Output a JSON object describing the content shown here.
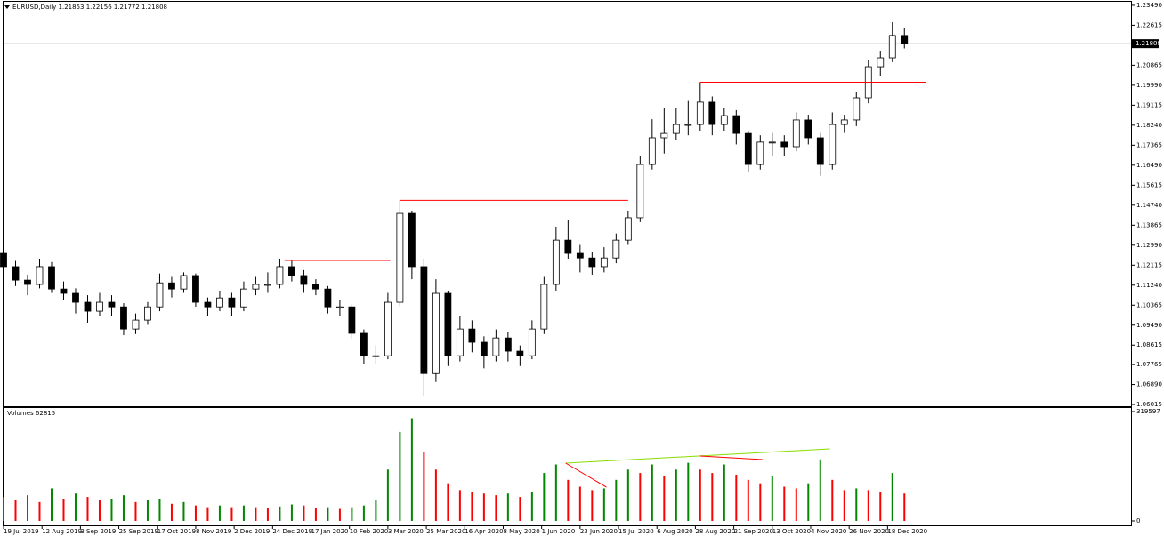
{
  "chart_data": {
    "type": "candlestick",
    "title": "EURUSD,Daily  1.21853 1.22156 1.21772 1.21808",
    "x": [
      0,
      5,
      10,
      15,
      20,
      25,
      30,
      35,
      40,
      45,
      50,
      55,
      60,
      65,
      70,
      75,
      80,
      85,
      90,
      95,
      100,
      105,
      110,
      115,
      120,
      125,
      130,
      135,
      140,
      145,
      150,
      155,
      160,
      165,
      170,
      175,
      180,
      185,
      190,
      195,
      200,
      205,
      210,
      215,
      220,
      225,
      230,
      235,
      240,
      245,
      250,
      255,
      260,
      265,
      270,
      275,
      280,
      285,
      290,
      295,
      300,
      305,
      310,
      315,
      320,
      325,
      330,
      335,
      340,
      345,
      350,
      355,
      360,
      365,
      370,
      375
    ],
    "xlim": [
      0,
      469
    ],
    "xticks": [
      {
        "value": 0,
        "label": "19 Jul 2019"
      },
      {
        "value": 16,
        "label": "12 Aug 2019"
      },
      {
        "value": 32,
        "label": "3 Sep 2019"
      },
      {
        "value": 48,
        "label": "25 Sep 2019"
      },
      {
        "value": 64,
        "label": "17 Oct 2019"
      },
      {
        "value": 80,
        "label": "8 Nov 2019"
      },
      {
        "value": 96,
        "label": "2 Dec 2019"
      },
      {
        "value": 112,
        "label": "24 Dec 2019"
      },
      {
        "value": 128,
        "label": "17 Jan 2020"
      },
      {
        "value": 144,
        "label": "10 Feb 2020"
      },
      {
        "value": 160,
        "label": "3 Mar 2020"
      },
      {
        "value": 176,
        "label": "25 Mar 2020"
      },
      {
        "value": 192,
        "label": "16 Apr 2020"
      },
      {
        "value": 208,
        "label": "8 May 2020"
      },
      {
        "value": 224,
        "label": "1 Jun 2020"
      },
      {
        "value": 240,
        "label": "23 Jun 2020"
      },
      {
        "value": 256,
        "label": "15 Jul 2020"
      },
      {
        "value": 272,
        "label": "6 Aug 2020"
      },
      {
        "value": 288,
        "label": "28 Aug 2020"
      },
      {
        "value": 304,
        "label": "21 Sep 2020"
      },
      {
        "value": 320,
        "label": "13 Oct 2020"
      },
      {
        "value": 336,
        "label": "4 Nov 2020"
      },
      {
        "value": 352,
        "label": "26 Nov 2020"
      },
      {
        "value": 368,
        "label": "18 Dec 2020"
      }
    ],
    "candles": [
      [
        1.1263,
        1.129,
        1.118,
        1.1205
      ],
      [
        1.1205,
        1.123,
        1.112,
        1.1146
      ],
      [
        1.1146,
        1.117,
        1.108,
        1.1127
      ],
      [
        1.1127,
        1.124,
        1.111,
        1.1205
      ],
      [
        1.1205,
        1.1225,
        1.109,
        1.1107
      ],
      [
        1.1107,
        1.114,
        1.106,
        1.1088
      ],
      [
        1.1088,
        1.111,
        1.1,
        1.1049
      ],
      [
        1.1049,
        1.108,
        1.096,
        1.101
      ],
      [
        1.101,
        1.109,
        1.099,
        1.1049
      ],
      [
        1.1049,
        1.108,
        1.099,
        1.1029
      ],
      [
        1.1029,
        1.1045,
        1.0905,
        1.0932
      ],
      [
        1.0932,
        1.1,
        1.091,
        1.0971
      ],
      [
        1.0971,
        1.105,
        1.095,
        1.1029
      ],
      [
        1.1029,
        1.1175,
        1.101,
        1.1134
      ],
      [
        1.1134,
        1.116,
        1.107,
        1.1107
      ],
      [
        1.1107,
        1.118,
        1.109,
        1.1166
      ],
      [
        1.1166,
        1.1175,
        1.103,
        1.1049
      ],
      [
        1.1049,
        1.107,
        1.099,
        1.1029
      ],
      [
        1.1029,
        1.11,
        1.101,
        1.1068
      ],
      [
        1.1068,
        1.109,
        1.099,
        1.1029
      ],
      [
        1.1029,
        1.114,
        1.101,
        1.1107
      ],
      [
        1.1107,
        1.116,
        1.108,
        1.1127
      ],
      [
        1.1127,
        1.118,
        1.109,
        1.1127
      ],
      [
        1.1127,
        1.124,
        1.111,
        1.1205
      ],
      [
        1.1205,
        1.123,
        1.114,
        1.1166
      ],
      [
        1.1166,
        1.119,
        1.109,
        1.1127
      ],
      [
        1.1127,
        1.115,
        1.108,
        1.1107
      ],
      [
        1.1107,
        1.112,
        1.1,
        1.1029
      ],
      [
        1.1029,
        1.106,
        1.099,
        1.1029
      ],
      [
        1.1029,
        1.104,
        1.089,
        1.0913
      ],
      [
        1.0913,
        1.093,
        1.078,
        1.0815
      ],
      [
        1.0815,
        1.086,
        1.078,
        1.0815
      ],
      [
        1.0815,
        1.109,
        1.08,
        1.1049
      ],
      [
        1.1049,
        1.1496,
        1.103,
        1.1438
      ],
      [
        1.1438,
        1.145,
        1.115,
        1.1205
      ],
      [
        1.1205,
        1.124,
        1.0636,
        1.0737
      ],
      [
        1.0737,
        1.115,
        1.07,
        1.1088
      ],
      [
        1.1088,
        1.11,
        1.077,
        1.0815
      ],
      [
        1.0815,
        1.099,
        1.079,
        1.0932
      ],
      [
        1.0932,
        1.097,
        1.083,
        1.0874
      ],
      [
        1.0874,
        1.09,
        1.076,
        1.0815
      ],
      [
        1.0815,
        1.093,
        1.079,
        1.0893
      ],
      [
        1.0893,
        1.092,
        1.079,
        1.0835
      ],
      [
        1.0835,
        1.086,
        1.077,
        1.0815
      ],
      [
        1.0815,
        1.097,
        1.08,
        1.0932
      ],
      [
        1.0932,
        1.116,
        1.091,
        1.1127
      ],
      [
        1.1127,
        1.138,
        1.11,
        1.1321
      ],
      [
        1.1321,
        1.141,
        1.124,
        1.1263
      ],
      [
        1.1263,
        1.13,
        1.118,
        1.1243
      ],
      [
        1.1243,
        1.127,
        1.117,
        1.1205
      ],
      [
        1.1205,
        1.129,
        1.118,
        1.1243
      ],
      [
        1.1243,
        1.135,
        1.122,
        1.1321
      ],
      [
        1.1321,
        1.145,
        1.13,
        1.1419
      ],
      [
        1.1419,
        1.169,
        1.14,
        1.1652
      ],
      [
        1.1652,
        1.185,
        1.163,
        1.1769
      ],
      [
        1.1769,
        1.19,
        1.17,
        1.1788
      ],
      [
        1.1788,
        1.19,
        1.176,
        1.1827
      ],
      [
        1.1827,
        1.193,
        1.178,
        1.1827
      ],
      [
        1.1827,
        1.2012,
        1.18,
        1.1925
      ],
      [
        1.1925,
        1.195,
        1.178,
        1.1827
      ],
      [
        1.1827,
        1.19,
        1.18,
        1.1866
      ],
      [
        1.1866,
        1.189,
        1.174,
        1.1788
      ],
      [
        1.1788,
        1.18,
        1.162,
        1.1652
      ],
      [
        1.1652,
        1.178,
        1.163,
        1.175
      ],
      [
        1.175,
        1.179,
        1.169,
        1.175
      ],
      [
        1.175,
        1.178,
        1.169,
        1.173
      ],
      [
        1.173,
        1.188,
        1.171,
        1.1847
      ],
      [
        1.1847,
        1.187,
        1.174,
        1.1769
      ],
      [
        1.1769,
        1.179,
        1.1603,
        1.1652
      ],
      [
        1.1652,
        1.188,
        1.163,
        1.1827
      ],
      [
        1.1827,
        1.187,
        1.179,
        1.1847
      ],
      [
        1.1847,
        1.197,
        1.182,
        1.1944
      ],
      [
        1.1944,
        1.211,
        1.192,
        1.208
      ],
      [
        1.208,
        1.215,
        1.204,
        1.2119
      ],
      [
        1.2119,
        1.2275,
        1.21,
        1.2217
      ],
      [
        1.2217,
        1.225,
        1.216,
        1.2181
      ]
    ],
    "ylim": [
      1.0594,
      1.2372
    ],
    "yticks": [
      {
        "value": 1.2349,
        "label": "1.23490"
      },
      1.22615,
      1.20865,
      {
        "value": 1.1999,
        "label": "1.19990"
      },
      1.19115,
      {
        "value": 1.1824,
        "label": "1.18240"
      },
      1.17365,
      {
        "value": 1.1649,
        "label": "1.16490"
      },
      1.15615,
      {
        "value": 1.1474,
        "label": "1.14740"
      },
      1.13865,
      {
        "value": 1.1299,
        "label": "1.12990"
      },
      1.12115,
      {
        "value": 1.1124,
        "label": "1.11240"
      },
      1.10365,
      {
        "value": 1.0949,
        "label": "1.09490"
      },
      1.08615,
      1.07765,
      {
        "value": 1.0689,
        "label": "1.06890"
      },
      1.06015
    ],
    "bid": 1.21808,
    "up_color": "#ffffff",
    "down_color": "#000000",
    "level_color": "#ff0000",
    "levels": [
      {
        "price": 1.1232,
        "from": 117,
        "to": 161
      },
      {
        "price": 1.1495,
        "from": 165,
        "to": 260
      },
      {
        "price": 1.2012,
        "from": 290,
        "to": 384
      }
    ],
    "volume": {
      "title": "Volumes 62815",
      "values": [
        70000,
        60000,
        75000,
        55000,
        95000,
        65000,
        80000,
        70000,
        60000,
        65000,
        75000,
        55000,
        60000,
        65000,
        50000,
        55000,
        45000,
        40000,
        45000,
        40000,
        45000,
        40000,
        38000,
        42000,
        48000,
        45000,
        38000,
        40000,
        35000,
        40000,
        45000,
        60000,
        150000,
        260000,
        300000,
        200000,
        150000,
        110000,
        90000,
        85000,
        80000,
        75000,
        80000,
        70000,
        85000,
        140000,
        165000,
        120000,
        100000,
        90000,
        95000,
        120000,
        150000,
        140000,
        165000,
        130000,
        150000,
        170000,
        150000,
        140000,
        165000,
        135000,
        120000,
        110000,
        130000,
        100000,
        95000,
        110000,
        180000,
        120000,
        90000,
        95000,
        90000,
        85000,
        140000,
        80000
      ],
      "ylim": [
        0,
        319597
      ],
      "yticks": [
        0,
        319597
      ],
      "up_color": "#008800",
      "down_color": "#ff0000",
      "lines": [
        {
          "x": [
            234,
            344
          ],
          "values": [
            168870,
            210440
          ],
          "color": "#88dd00"
        },
        {
          "x": [
            234,
            251
          ],
          "values": [
            168900,
            98700
          ],
          "color": "#ff0000"
        },
        {
          "x": [
            290,
            316
          ],
          "values": [
            189650,
            179260
          ],
          "color": "#ff0000"
        }
      ]
    }
  }
}
